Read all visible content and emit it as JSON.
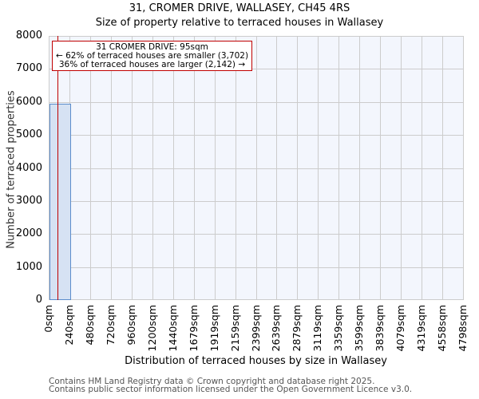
{
  "header": {
    "title": "31, CROMER DRIVE, WALLASEY, CH45 4RS",
    "subtitle": "Size of property relative to terraced houses in Wallasey"
  },
  "annotation": {
    "line1": "31 CROMER DRIVE: 95sqm",
    "line2": "← 62% of terraced houses are smaller (3,702)",
    "line3": "36% of terraced houses are larger (2,142) →"
  },
  "axes": {
    "ylabel": "Number of terraced properties",
    "xlabel": "Distribution of terraced houses by size in Wallasey",
    "yticks": [
      "0",
      "1000",
      "2000",
      "3000",
      "4000",
      "5000",
      "6000",
      "7000",
      "8000"
    ],
    "xticks": [
      "0sqm",
      "240sqm",
      "480sqm",
      "720sqm",
      "960sqm",
      "1200sqm",
      "1440sqm",
      "1679sqm",
      "1919sqm",
      "2159sqm",
      "2399sqm",
      "2639sqm",
      "2879sqm",
      "3119sqm",
      "3359sqm",
      "3599sqm",
      "3839sqm",
      "4079sqm",
      "4319sqm",
      "4558sqm",
      "4798sqm"
    ]
  },
  "footer": {
    "line1": "Contains HM Land Registry data © Crown copyright and database right 2025.",
    "line2": "Contains public sector information licensed under the Open Government Licence v3.0."
  },
  "colors": {
    "bar_fill": "#d6e2f3",
    "bar_edge": "#5b8ccb",
    "marker": "#c00000",
    "plot_bg": "#f3f6fd",
    "grid": "#cccccc"
  },
  "chart_data": {
    "type": "bar",
    "title": "31, CROMER DRIVE, WALLASEY, CH45 4RS",
    "subtitle": "Size of property relative to terraced houses in Wallasey",
    "xlabel": "Distribution of terraced houses by size in Wallasey",
    "ylabel": "Number of terraced properties",
    "categories": [
      "0sqm",
      "240sqm",
      "480sqm",
      "720sqm",
      "960sqm",
      "1200sqm",
      "1440sqm",
      "1679sqm",
      "1919sqm",
      "2159sqm",
      "2399sqm",
      "2639sqm",
      "2879sqm",
      "3119sqm",
      "3359sqm",
      "3599sqm",
      "3839sqm",
      "4079sqm",
      "4319sqm",
      "4558sqm"
    ],
    "bin_edges": [
      0,
      240,
      480,
      720,
      960,
      1200,
      1440,
      1679,
      1919,
      2159,
      2399,
      2639,
      2879,
      3119,
      3359,
      3599,
      3839,
      4079,
      4319,
      4558,
      4798
    ],
    "values": [
      5950,
      0,
      0,
      0,
      0,
      0,
      0,
      0,
      0,
      0,
      0,
      0,
      0,
      0,
      0,
      0,
      0,
      0,
      0,
      0
    ],
    "ylim": [
      0,
      8000
    ],
    "xlim": [
      0,
      4798
    ],
    "grid": true,
    "marker": {
      "x": 95,
      "label": "31 CROMER DRIVE: 95sqm"
    },
    "annotations": [
      "31 CROMER DRIVE: 95sqm",
      "← 62% of terraced houses are smaller (3,702)",
      "36% of terraced houses are larger (2,142) →"
    ]
  }
}
